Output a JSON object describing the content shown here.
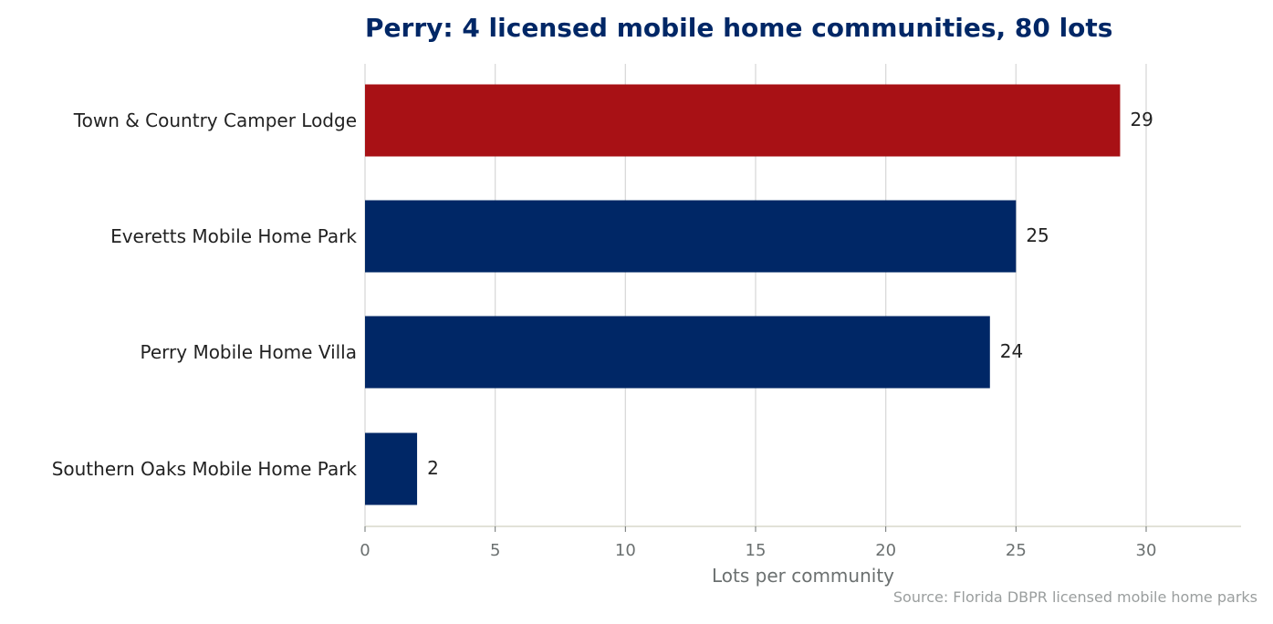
{
  "colors": {
    "title": "#002766",
    "highlight": "#a81115",
    "bar": "#002766",
    "grid": "#d9d9d9",
    "axis": "#d8d8cc"
  },
  "chart_data": {
    "type": "bar",
    "orientation": "horizontal",
    "title": "Perry: 4 licensed mobile home communities, 80 lots",
    "xlabel": "Lots per community",
    "ylabel": "",
    "categories": [
      "Town & Country Camper Lodge",
      "Everetts Mobile Home Park",
      "Perry Mobile Home Villa",
      "Southern Oaks Mobile Home Park"
    ],
    "values": [
      29,
      25,
      24,
      2
    ],
    "highlight_index": 0,
    "xlim": [
      0,
      33.7
    ],
    "xticks": [
      0,
      5,
      10,
      15,
      20,
      25,
      30
    ],
    "grid": "vertical",
    "source": "Source: Florida DBPR licensed mobile home parks"
  }
}
